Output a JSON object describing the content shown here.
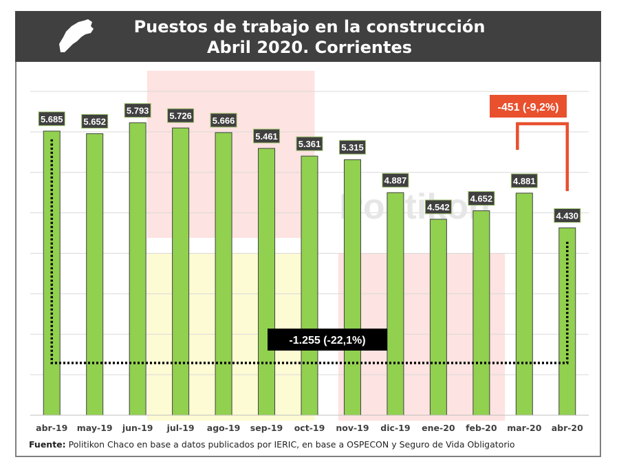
{
  "header": {
    "title_line1": "Puestos de trabajo en la construcción",
    "title_line2": "Abril 2020. Corrientes",
    "map_icon": "province-map-icon"
  },
  "source": {
    "label": "Fuente:",
    "text": " Politikon Chaco en base a datos publicados por IERIC, en base a OSPECON y Seguro de Vida Obligatorio"
  },
  "watermark": "Politikon",
  "chart_data": {
    "type": "bar",
    "categories": [
      "abr-19",
      "may-19",
      "jun-19",
      "jul-19",
      "ago-19",
      "sep-19",
      "oct-19",
      "nov-19",
      "dic-19",
      "ene-20",
      "feb-20",
      "mar-20",
      "abr-20"
    ],
    "values": [
      5685,
      5652,
      5793,
      5726,
      5666,
      5461,
      5361,
      5315,
      4887,
      4542,
      4652,
      4881,
      4430
    ],
    "value_labels": [
      "5.685",
      "5.652",
      "5.793",
      "5.726",
      "5.666",
      "5.461",
      "5.361",
      "5.315",
      "4.887",
      "4.542",
      "4.652",
      "4.881",
      "4.430"
    ],
    "ylim": [
      2000,
      6200
    ],
    "grid": true,
    "bar_color": "#92d050",
    "annotations": {
      "monthly_change": "-451 (-9,2%)",
      "annual_change": "-1.255 (-22,1%)",
      "monthly_color": "#e8502e",
      "annual_color": "#000000"
    },
    "highlight_colors": [
      "#fde3e1",
      "#fdfbd4",
      "#fde3e1"
    ]
  }
}
